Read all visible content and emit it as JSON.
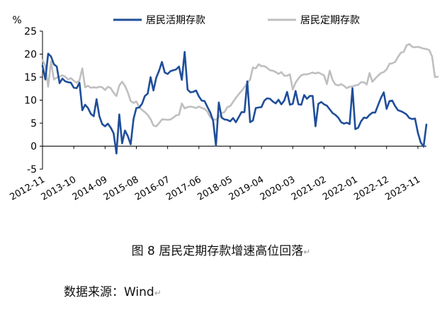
{
  "caption": {
    "text": "图 8 居民定期存款增速高位回落",
    "mark": "↵"
  },
  "source": {
    "text": "数据来源：Wind",
    "mark": "↵"
  },
  "chart_data": {
    "type": "line",
    "ylabel": "%",
    "ylim": [
      -5,
      25
    ],
    "yticks": [
      25,
      20,
      15,
      10,
      5,
      0,
      -5
    ],
    "xticks": [
      "2012-11",
      "2013-10",
      "2014-09",
      "2015-08",
      "2016-07",
      "2017-06",
      "2018-05",
      "2019-04",
      "2020-03",
      "2021-02",
      "2022-01",
      "2022-12",
      "2023-11"
    ],
    "legend_position": "top",
    "start": "2012-11",
    "series": [
      {
        "name": "居民活期存款",
        "color": "#1f4e9a",
        "values": [
          17.5,
          14.5,
          20.1,
          19.5,
          17.8,
          17.3,
          13.7,
          14.7,
          14.1,
          13.9,
          13.8,
          12.7,
          12.6,
          13.8,
          7.8,
          9.0,
          8.3,
          7.0,
          6.5,
          10.2,
          6.5,
          4.8,
          4.3,
          4.9,
          4.0,
          2.8,
          -1.6,
          6.9,
          0.6,
          3.4,
          2.2,
          0.4,
          5.9,
          8.3,
          8.4,
          9.2,
          10.9,
          11.4,
          15.0,
          12.1,
          14.9,
          16.4,
          18.3,
          16.0,
          15.7,
          16.3,
          16.5,
          16.7,
          17.3,
          14.4,
          20.5,
          12.3,
          11.7,
          11.8,
          12.1,
          10.8,
          9.9,
          9.8,
          8.5,
          7.3,
          5.5,
          0.1,
          9.5,
          6.2,
          5.8,
          5.7,
          5.4,
          6.1,
          5.2,
          6.3,
          7.4,
          7.4,
          14.1,
          5.2,
          5.6,
          8.3,
          8.4,
          8.5,
          9.9,
          10.4,
          10.3,
          9.7,
          9.3,
          10.1,
          9.1,
          9.9,
          11.8,
          9.0,
          9.2,
          12.0,
          9.1,
          9.0,
          11.1,
          10.3,
          10.9,
          10.9,
          4.3,
          9.2,
          9.6,
          9.1,
          8.8,
          8.0,
          7.2,
          6.8,
          6.2,
          5.2,
          4.9,
          5.1,
          4.8,
          12.6,
          3.7,
          4.0,
          5.4,
          6.2,
          6.1,
          6.8,
          7.3,
          7.3,
          8.9,
          10.5,
          11.7,
          8.1,
          9.8,
          9.9,
          8.7,
          7.8,
          7.6,
          7.3,
          6.9,
          6.1,
          5.9,
          6.0,
          2.9,
          0.8,
          -0.1,
          4.7
        ]
      },
      {
        "name": "居民定期存款",
        "color": "#bfbfbf",
        "values": [
          18.7,
          17.5,
          12.9,
          18.4,
          14.5,
          14.9,
          15.1,
          15.4,
          15.1,
          14.5,
          14.8,
          14.2,
          13.8,
          14.3,
          16.9,
          12.8,
          13.1,
          12.7,
          12.8,
          12.7,
          12.9,
          12.8,
          12.2,
          12.9,
          12.6,
          11.6,
          10.9,
          13.2,
          14.0,
          13.1,
          11.7,
          9.8,
          9.4,
          9.7,
          8.5,
          7.9,
          7.4,
          6.8,
          5.9,
          4.5,
          4.3,
          5.0,
          5.8,
          5.8,
          5.7,
          5.8,
          6.2,
          6.7,
          6.8,
          9.3,
          8.2,
          8.5,
          8.6,
          8.5,
          8.3,
          8.6,
          8.3,
          8.1,
          7.5,
          6.3,
          5.9,
          5.7,
          6.3,
          7.2,
          7.4,
          8.5,
          8.7,
          9.6,
          10.5,
          11.3,
          12.0,
          12.8,
          13.7,
          14.5,
          17.1,
          16.9,
          17.8,
          17.4,
          17.4,
          17.0,
          16.5,
          16.4,
          16.1,
          15.7,
          16.1,
          15.3,
          15.3,
          15.6,
          12.3,
          13.8,
          14.7,
          15.4,
          15.6,
          15.6,
          15.8,
          16.0,
          15.8,
          16.0,
          15.7,
          15.4,
          13.5,
          16.4,
          14.4,
          13.4,
          13.2,
          13.5,
          13.1,
          12.6,
          12.9,
          13.0,
          13.2,
          13.3,
          13.9,
          13.9,
          13.4,
          15.9,
          14.0,
          14.7,
          15.3,
          15.9,
          16.1,
          16.7,
          17.9,
          18.0,
          18.3,
          19.4,
          20.3,
          20.5,
          21.9,
          22.2,
          21.6,
          21.5,
          21.6,
          21.4,
          21.2,
          21.1,
          20.9,
          19.5,
          15.0,
          15.1
        ]
      }
    ]
  }
}
